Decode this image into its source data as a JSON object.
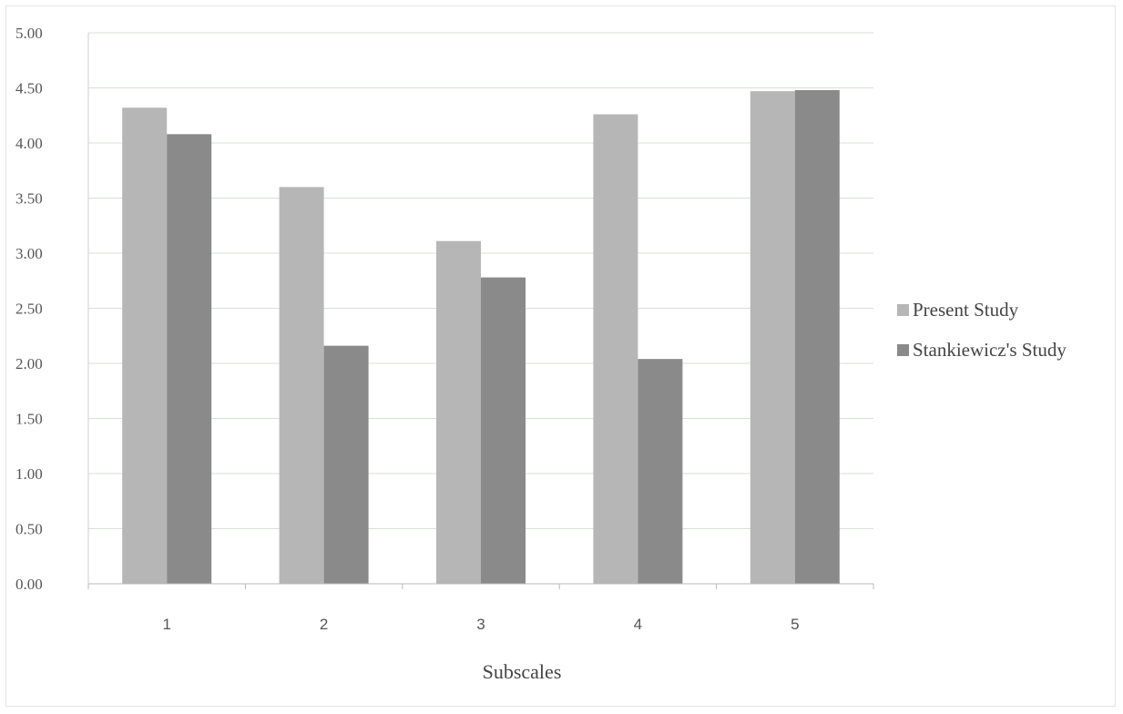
{
  "chart_data": {
    "type": "bar",
    "categories": [
      "1",
      "2",
      "3",
      "4",
      "5"
    ],
    "series": [
      {
        "name": "Present Study",
        "values": [
          4.32,
          3.6,
          3.11,
          4.26,
          4.47
        ],
        "color": "#b6b6b6"
      },
      {
        "name": "Stankiewicz's Study",
        "values": [
          4.08,
          2.16,
          2.78,
          2.04,
          4.48
        ],
        "color": "#8a8a8a"
      }
    ],
    "title": "",
    "xlabel": "Subscales",
    "ylabel": "",
    "ylim": [
      0,
      5
    ],
    "yticks": [
      "0.00",
      "0.50",
      "1.00",
      "1.50",
      "2.00",
      "2.50",
      "3.00",
      "3.50",
      "4.00",
      "4.50",
      "5.00"
    ],
    "grid": true,
    "legend_position": "right"
  }
}
